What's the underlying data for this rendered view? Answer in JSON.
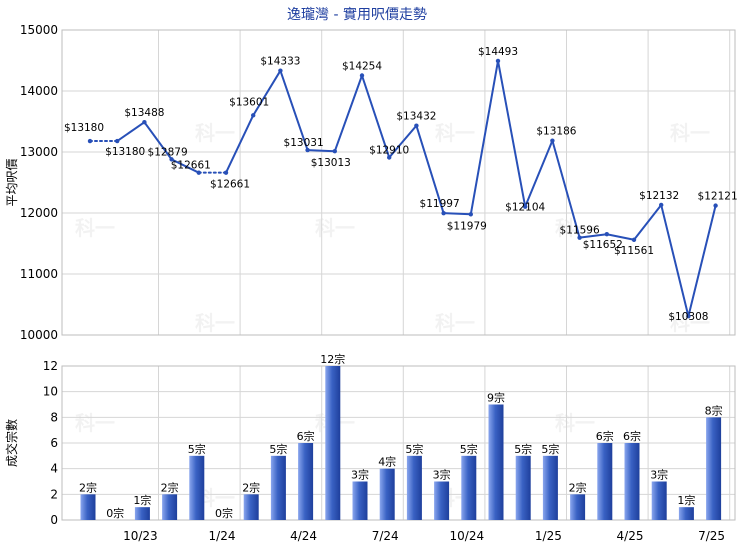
{
  "chart_data": [
    {
      "type": "line",
      "title": "逸瓏灣 - 實用呎價走勢",
      "ylabel": "平均呎價",
      "ylim": [
        10000,
        15000
      ],
      "yticks": [
        10000,
        11000,
        12000,
        13000,
        14000,
        15000
      ],
      "grid": true,
      "color": "#2850b8",
      "values": [
        13180,
        13180,
        13488,
        12879,
        12661,
        12661,
        13601,
        14333,
        13031,
        13013,
        14254,
        12910,
        13432,
        11997,
        11979,
        14493,
        12104,
        13186,
        11596,
        11652,
        11561,
        12132,
        10308,
        12121
      ],
      "labels": [
        "$13180",
        "$13180",
        "$13488",
        "$12879",
        "$12661",
        "$12661",
        "$13601",
        "$14333",
        "$13031",
        "$13013",
        "$14254",
        "$12910",
        "$13432",
        "$11997",
        "$11979",
        "$14493",
        "$12104",
        "$13186",
        "$11596",
        "$11652",
        "$11561",
        "$12132",
        "$10308",
        "$12121"
      ],
      "dotted_segments": [
        [
          0,
          1
        ],
        [
          4,
          5
        ]
      ]
    },
    {
      "type": "bar",
      "ylabel": "成交宗數",
      "ylim": [
        0,
        12
      ],
      "yticks": [
        0,
        2,
        4,
        6,
        8,
        10,
        12
      ],
      "grid": true,
      "color": "#3a62c4",
      "values": [
        2,
        0,
        1,
        2,
        5,
        0,
        2,
        5,
        6,
        12,
        3,
        4,
        5,
        3,
        5,
        9,
        5,
        5,
        2,
        6,
        6,
        3,
        1,
        8
      ],
      "labels": [
        "2宗",
        "0宗",
        "1宗",
        "2宗",
        "5宗",
        "0宗",
        "2宗",
        "5宗",
        "6宗",
        "12宗",
        "3宗",
        "4宗",
        "5宗",
        "3宗",
        "5宗",
        "9宗",
        "5宗",
        "5宗",
        "2宗",
        "6宗",
        "6宗",
        "3宗",
        "1宗",
        "8宗"
      ],
      "x_ticks": [
        {
          "index": 2,
          "label": "10/23"
        },
        {
          "index": 5,
          "label": "1/24"
        },
        {
          "index": 8,
          "label": "4/24"
        },
        {
          "index": 11,
          "label": "7/24"
        },
        {
          "index": 14,
          "label": "10/24"
        },
        {
          "index": 17,
          "label": "1/25"
        },
        {
          "index": 20,
          "label": "4/25"
        },
        {
          "index": 23,
          "label": "7/25"
        }
      ]
    }
  ],
  "watermark": "科一"
}
